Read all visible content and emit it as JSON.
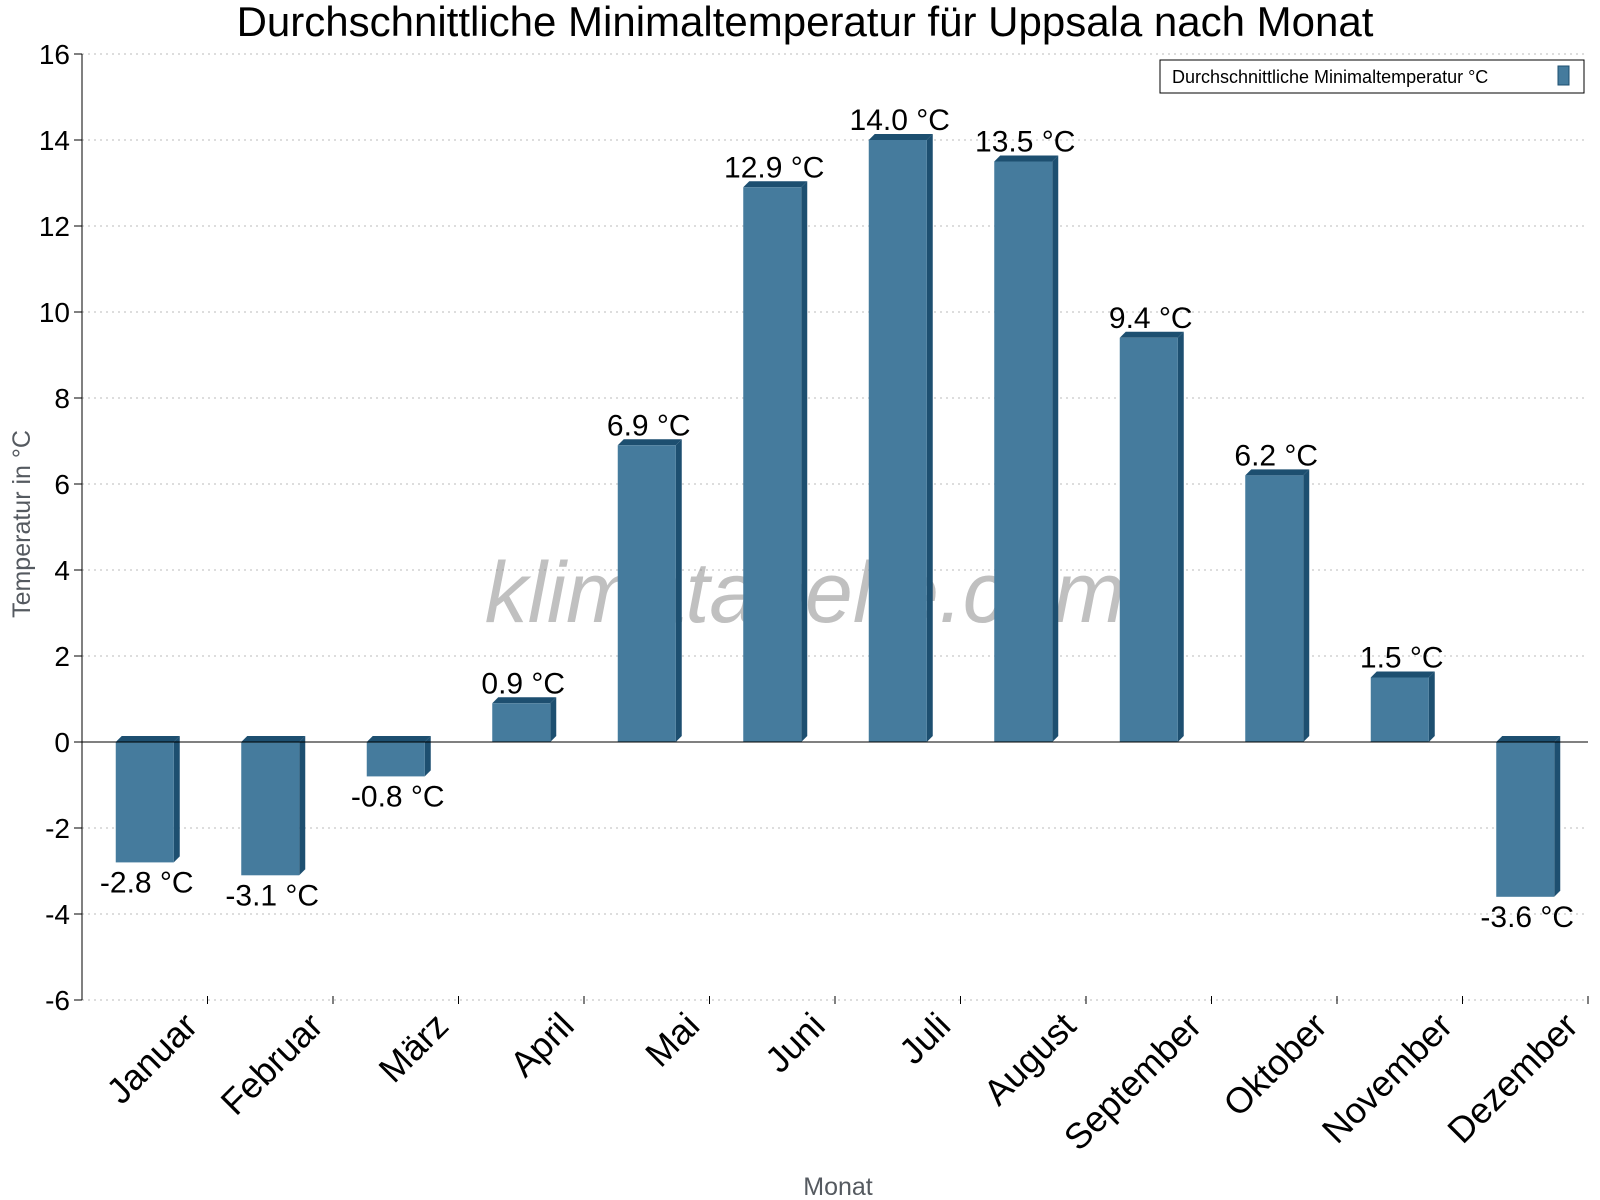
{
  "chart_data": {
    "type": "bar",
    "title": "Durchschnittliche Minimaltemperatur für Uppsala nach Monat",
    "xlabel": "Monat",
    "ylabel": "Temperatur in °C",
    "categories": [
      "Januar",
      "Februar",
      "März",
      "April",
      "Mai",
      "Juni",
      "Juli",
      "August",
      "September",
      "Oktober",
      "November",
      "Dezember"
    ],
    "series": [
      {
        "name": "Durchschnittliche Minimaltemperatur °C",
        "values": [
          -2.8,
          -3.1,
          -0.8,
          0.9,
          6.9,
          12.9,
          14.0,
          13.5,
          9.4,
          6.2,
          1.5,
          -3.6
        ],
        "labels": [
          "-2.8 °C",
          "-3.1 °C",
          "-0.8 °C",
          "0.9 °C",
          "6.9 °C",
          "12.9 °C",
          "14.0 °C",
          "13.5 °C",
          "9.4 °C",
          "6.2 °C",
          "1.5 °C",
          "-3.6 °C"
        ]
      }
    ],
    "ylim": [
      -6,
      16
    ],
    "yticks": [
      -6,
      -4,
      -2,
      0,
      2,
      4,
      6,
      8,
      10,
      12,
      14,
      16
    ],
    "ytick_labels": [
      "-6",
      "-4",
      "-2",
      "0",
      "2",
      "4",
      "6",
      "8",
      "10",
      "12",
      "14",
      "16"
    ],
    "grid": true,
    "legend_position": "top-right",
    "watermark": "klimatabelle.com",
    "colors": {
      "bar_face": "#457b9d",
      "bar_side": "#1d4f70",
      "grid": "#bbbbbb",
      "axis": "#000000"
    }
  }
}
